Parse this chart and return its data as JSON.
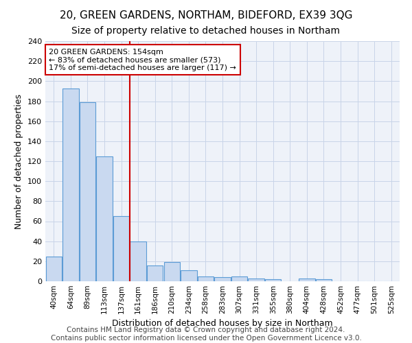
{
  "title1": "20, GREEN GARDENS, NORTHAM, BIDEFORD, EX39 3QG",
  "title2": "Size of property relative to detached houses in Northam",
  "xlabel": "Distribution of detached houses by size in Northam",
  "ylabel": "Number of detached properties",
  "footer": "Contains HM Land Registry data © Crown copyright and database right 2024.\nContains public sector information licensed under the Open Government Licence v3.0.",
  "bin_labels": [
    "40sqm",
    "64sqm",
    "89sqm",
    "113sqm",
    "137sqm",
    "161sqm",
    "186sqm",
    "210sqm",
    "234sqm",
    "258sqm",
    "283sqm",
    "307sqm",
    "331sqm",
    "355sqm",
    "380sqm",
    "404sqm",
    "428sqm",
    "452sqm",
    "477sqm",
    "501sqm",
    "525sqm"
  ],
  "bar_heights": [
    25,
    193,
    179,
    125,
    65,
    40,
    16,
    19,
    11,
    5,
    4,
    5,
    3,
    2,
    0,
    3,
    2,
    0,
    0,
    0,
    0
  ],
  "bar_color": "#c9d9f0",
  "bar_edge_color": "#5b9bd5",
  "annotation_text": "20 GREEN GARDENS: 154sqm\n← 83% of detached houses are smaller (573)\n17% of semi-detached houses are larger (117) →",
  "annotation_box_color": "#ffffff",
  "annotation_box_edge": "#cc0000",
  "vline_color": "#cc0000",
  "ylim": [
    0,
    240
  ],
  "yticks": [
    0,
    20,
    40,
    60,
    80,
    100,
    120,
    140,
    160,
    180,
    200,
    220,
    240
  ],
  "grid_color": "#c8d4e8",
  "bg_color": "#eef2f9",
  "title1_fontsize": 11,
  "title2_fontsize": 10,
  "xlabel_fontsize": 9,
  "ylabel_fontsize": 9,
  "footer_fontsize": 7.5,
  "annotation_fontsize": 8,
  "tick_fontsize": 7.5,
  "ytick_fontsize": 8
}
